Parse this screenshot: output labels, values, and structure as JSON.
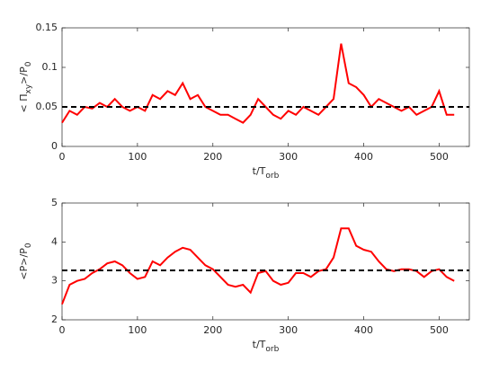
{
  "chart_data": [
    {
      "type": "line",
      "xlabel_parts": [
        "t/T",
        "orb"
      ],
      "ylabel_parts": [
        "< Π",
        "xy",
        ">/P",
        "0"
      ],
      "x": [
        0,
        10,
        20,
        30,
        40,
        50,
        60,
        70,
        80,
        90,
        100,
        110,
        120,
        130,
        140,
        150,
        160,
        170,
        180,
        190,
        200,
        210,
        220,
        230,
        240,
        250,
        260,
        270,
        280,
        290,
        300,
        310,
        320,
        330,
        340,
        350,
        360,
        370,
        380,
        390,
        400,
        410,
        420,
        430,
        440,
        450,
        460,
        470,
        480,
        490,
        500,
        510,
        520
      ],
      "series": [
        {
          "color": "#ff0000",
          "values": [
            0.03,
            0.045,
            0.04,
            0.05,
            0.048,
            0.055,
            0.05,
            0.06,
            0.05,
            0.045,
            0.05,
            0.045,
            0.065,
            0.06,
            0.07,
            0.065,
            0.08,
            0.06,
            0.065,
            0.05,
            0.045,
            0.04,
            0.04,
            0.035,
            0.03,
            0.04,
            0.06,
            0.05,
            0.04,
            0.035,
            0.045,
            0.04,
            0.05,
            0.045,
            0.04,
            0.05,
            0.06,
            0.13,
            0.08,
            0.075,
            0.065,
            0.05,
            0.06,
            0.055,
            0.05,
            0.045,
            0.05,
            0.04,
            0.045,
            0.05,
            0.07,
            0.04,
            0.04
          ]
        }
      ],
      "reference_line": {
        "value": 0.05,
        "color": "#000000",
        "dashed": true
      },
      "xlim": [
        0,
        540
      ],
      "xticks": [
        0,
        100,
        200,
        300,
        400,
        500
      ],
      "ylim": [
        0,
        0.15
      ],
      "yticks": [
        0,
        0.05,
        0.1,
        0.15
      ]
    },
    {
      "type": "line",
      "xlabel_parts": [
        "t/T",
        "orb"
      ],
      "ylabel_parts": [
        "<P>/P",
        "0"
      ],
      "x": [
        0,
        10,
        20,
        30,
        40,
        50,
        60,
        70,
        80,
        90,
        100,
        110,
        120,
        130,
        140,
        150,
        160,
        170,
        180,
        190,
        200,
        210,
        220,
        230,
        240,
        250,
        260,
        270,
        280,
        290,
        300,
        310,
        320,
        330,
        340,
        350,
        360,
        370,
        380,
        390,
        400,
        410,
        420,
        430,
        440,
        450,
        460,
        470,
        480,
        490,
        500,
        510,
        520
      ],
      "series": [
        {
          "color": "#ff0000",
          "values": [
            2.4,
            2.9,
            3.0,
            3.05,
            3.2,
            3.3,
            3.45,
            3.5,
            3.4,
            3.2,
            3.05,
            3.1,
            3.5,
            3.4,
            3.6,
            3.75,
            3.85,
            3.8,
            3.6,
            3.4,
            3.3,
            3.1,
            2.9,
            2.85,
            2.9,
            2.7,
            3.2,
            3.25,
            3.0,
            2.9,
            2.95,
            3.2,
            3.2,
            3.1,
            3.25,
            3.3,
            3.6,
            4.35,
            4.35,
            3.9,
            3.8,
            3.75,
            3.5,
            3.3,
            3.25,
            3.3,
            3.3,
            3.25,
            3.1,
            3.25,
            3.3,
            3.1,
            3.0
          ]
        }
      ],
      "reference_line": {
        "value": 3.27,
        "color": "#000000",
        "dashed": true
      },
      "xlim": [
        0,
        540
      ],
      "xticks": [
        0,
        100,
        200,
        300,
        400,
        500
      ],
      "ylim": [
        2,
        5
      ],
      "yticks": [
        2,
        3,
        4,
        5
      ]
    }
  ]
}
